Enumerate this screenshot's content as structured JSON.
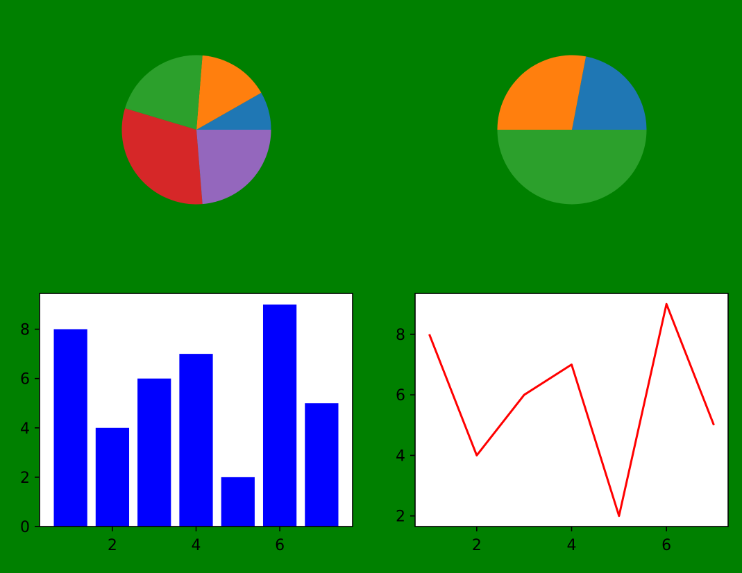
{
  "figure": {
    "background": "#008000"
  },
  "chart_data": [
    {
      "type": "pie",
      "title": "",
      "values": [
        8,
        15,
        21,
        30,
        23
      ],
      "colors": [
        "#1f77b4",
        "#ff7f0e",
        "#2ca02c",
        "#d62728",
        "#9467bd"
      ],
      "start_angle_deg": 0,
      "direction": "counterclockwise"
    },
    {
      "type": "pie",
      "title": "",
      "values": [
        22,
        28,
        50
      ],
      "colors": [
        "#1f77b4",
        "#ff7f0e",
        "#2ca02c"
      ],
      "start_angle_deg": 0,
      "direction": "counterclockwise"
    },
    {
      "type": "bar",
      "title": "",
      "xlabel": "",
      "ylabel": "",
      "x": [
        1,
        2,
        3,
        4,
        5,
        6,
        7
      ],
      "values": [
        8,
        4,
        6,
        7,
        2,
        9,
        5
      ],
      "bar_color": "#0000ff",
      "xlim": [
        0.26,
        7.74
      ],
      "ylim": [
        0,
        9.45
      ],
      "xticks": [
        2,
        4,
        6
      ],
      "xtick_labels": [
        "2",
        "4",
        "6"
      ],
      "yticks": [
        0,
        2,
        4,
        6,
        8
      ],
      "ytick_labels": [
        "0",
        "2",
        "4",
        "6",
        "8"
      ],
      "grid": false
    },
    {
      "type": "line",
      "title": "",
      "xlabel": "",
      "ylabel": "",
      "x": [
        1,
        2,
        3,
        4,
        5,
        6,
        7
      ],
      "values": [
        8,
        4,
        6,
        7,
        2,
        9,
        5
      ],
      "line_color": "#ff0000",
      "xlim": [
        0.7,
        7.3
      ],
      "ylim": [
        1.65,
        9.35
      ],
      "xticks": [
        2,
        4,
        6
      ],
      "xtick_labels": [
        "2",
        "4",
        "6"
      ],
      "yticks": [
        2,
        4,
        6,
        8
      ],
      "ytick_labels": [
        "2",
        "4",
        "6",
        "8"
      ],
      "grid": false
    }
  ]
}
